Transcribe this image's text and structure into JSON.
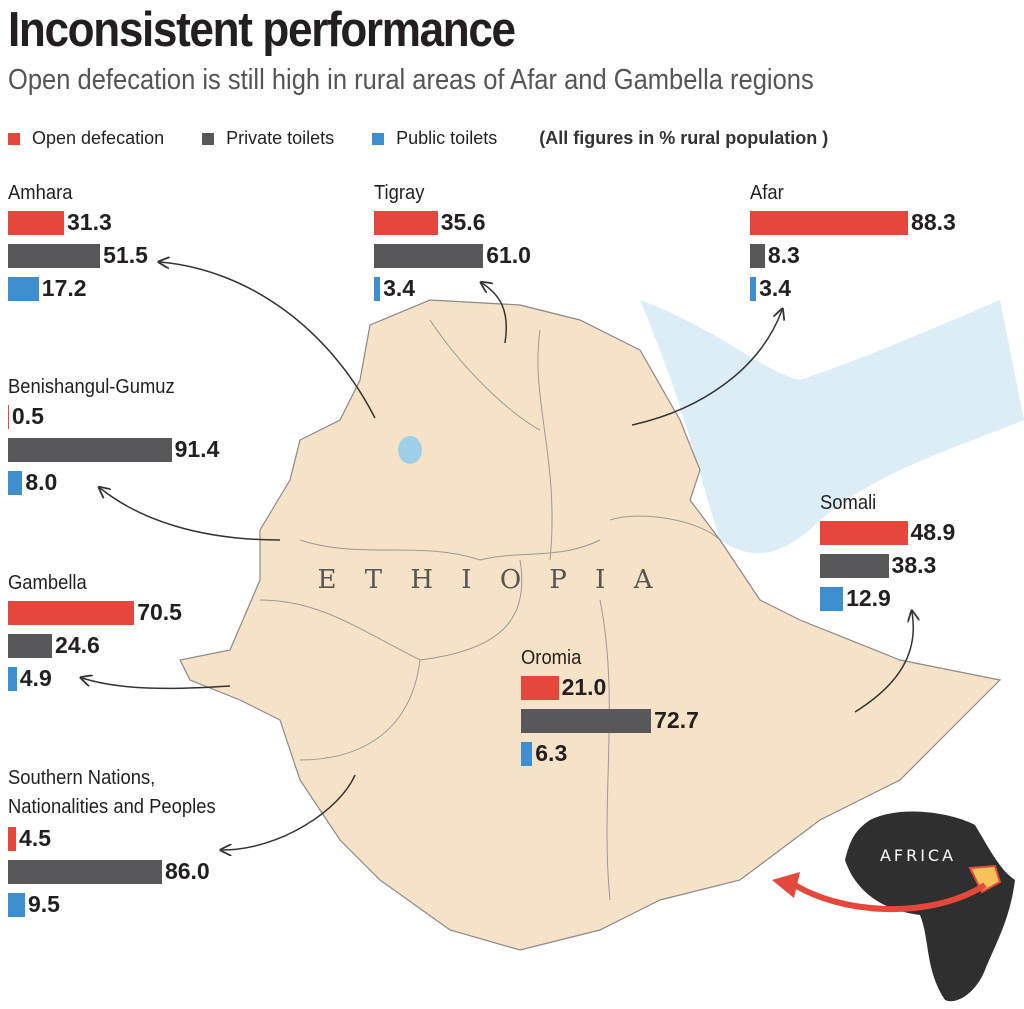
{
  "title": "Inconsistent performance",
  "subtitle": "Open defecation is still high in rural areas of Afar and Gambella regions",
  "legend": [
    {
      "name": "Open defecation",
      "color": "#e5473d"
    },
    {
      "name": "Private toilets",
      "color": "#58585a"
    },
    {
      "name": "Public toilets",
      "color": "#3e8fcf"
    }
  ],
  "note": "(All figures in % rural population )",
  "map_labels": {
    "country": "E T H I O P I A",
    "continent": "AFRICA"
  },
  "regions": [
    {
      "name": "Amhara",
      "values": [
        31.3,
        51.5,
        17.2
      ],
      "value_labels": [
        "31.3",
        "51.5",
        "17.2"
      ]
    },
    {
      "name": "Tigray",
      "values": [
        35.6,
        61.0,
        3.4
      ],
      "value_labels": [
        "35.6",
        "61.0",
        "3.4"
      ]
    },
    {
      "name": "Afar",
      "values": [
        88.3,
        8.3,
        3.4
      ],
      "value_labels": [
        "88.3",
        "8.3",
        "3.4"
      ]
    },
    {
      "name": "Benishangul-Gumuz",
      "values": [
        0.5,
        91.4,
        8.0
      ],
      "value_labels": [
        "0.5",
        "91.4",
        "8.0"
      ]
    },
    {
      "name": "Somali",
      "values": [
        48.9,
        38.3,
        12.9
      ],
      "value_labels": [
        "48.9",
        "38.3",
        "12.9"
      ]
    },
    {
      "name": "Gambella",
      "values": [
        70.5,
        24.6,
        4.9
      ],
      "value_labels": [
        "70.5",
        "24.6",
        "4.9"
      ]
    },
    {
      "name": "Oromia",
      "values": [
        21.0,
        72.7,
        6.3
      ],
      "value_labels": [
        "21.0",
        "72.7",
        "6.3"
      ]
    },
    {
      "name": "Southern Nations, Nationalities and Peoples",
      "values": [
        4.5,
        86.0,
        9.5
      ],
      "value_labels": [
        "4.5",
        "86.0",
        "9.5"
      ]
    }
  ]
}
